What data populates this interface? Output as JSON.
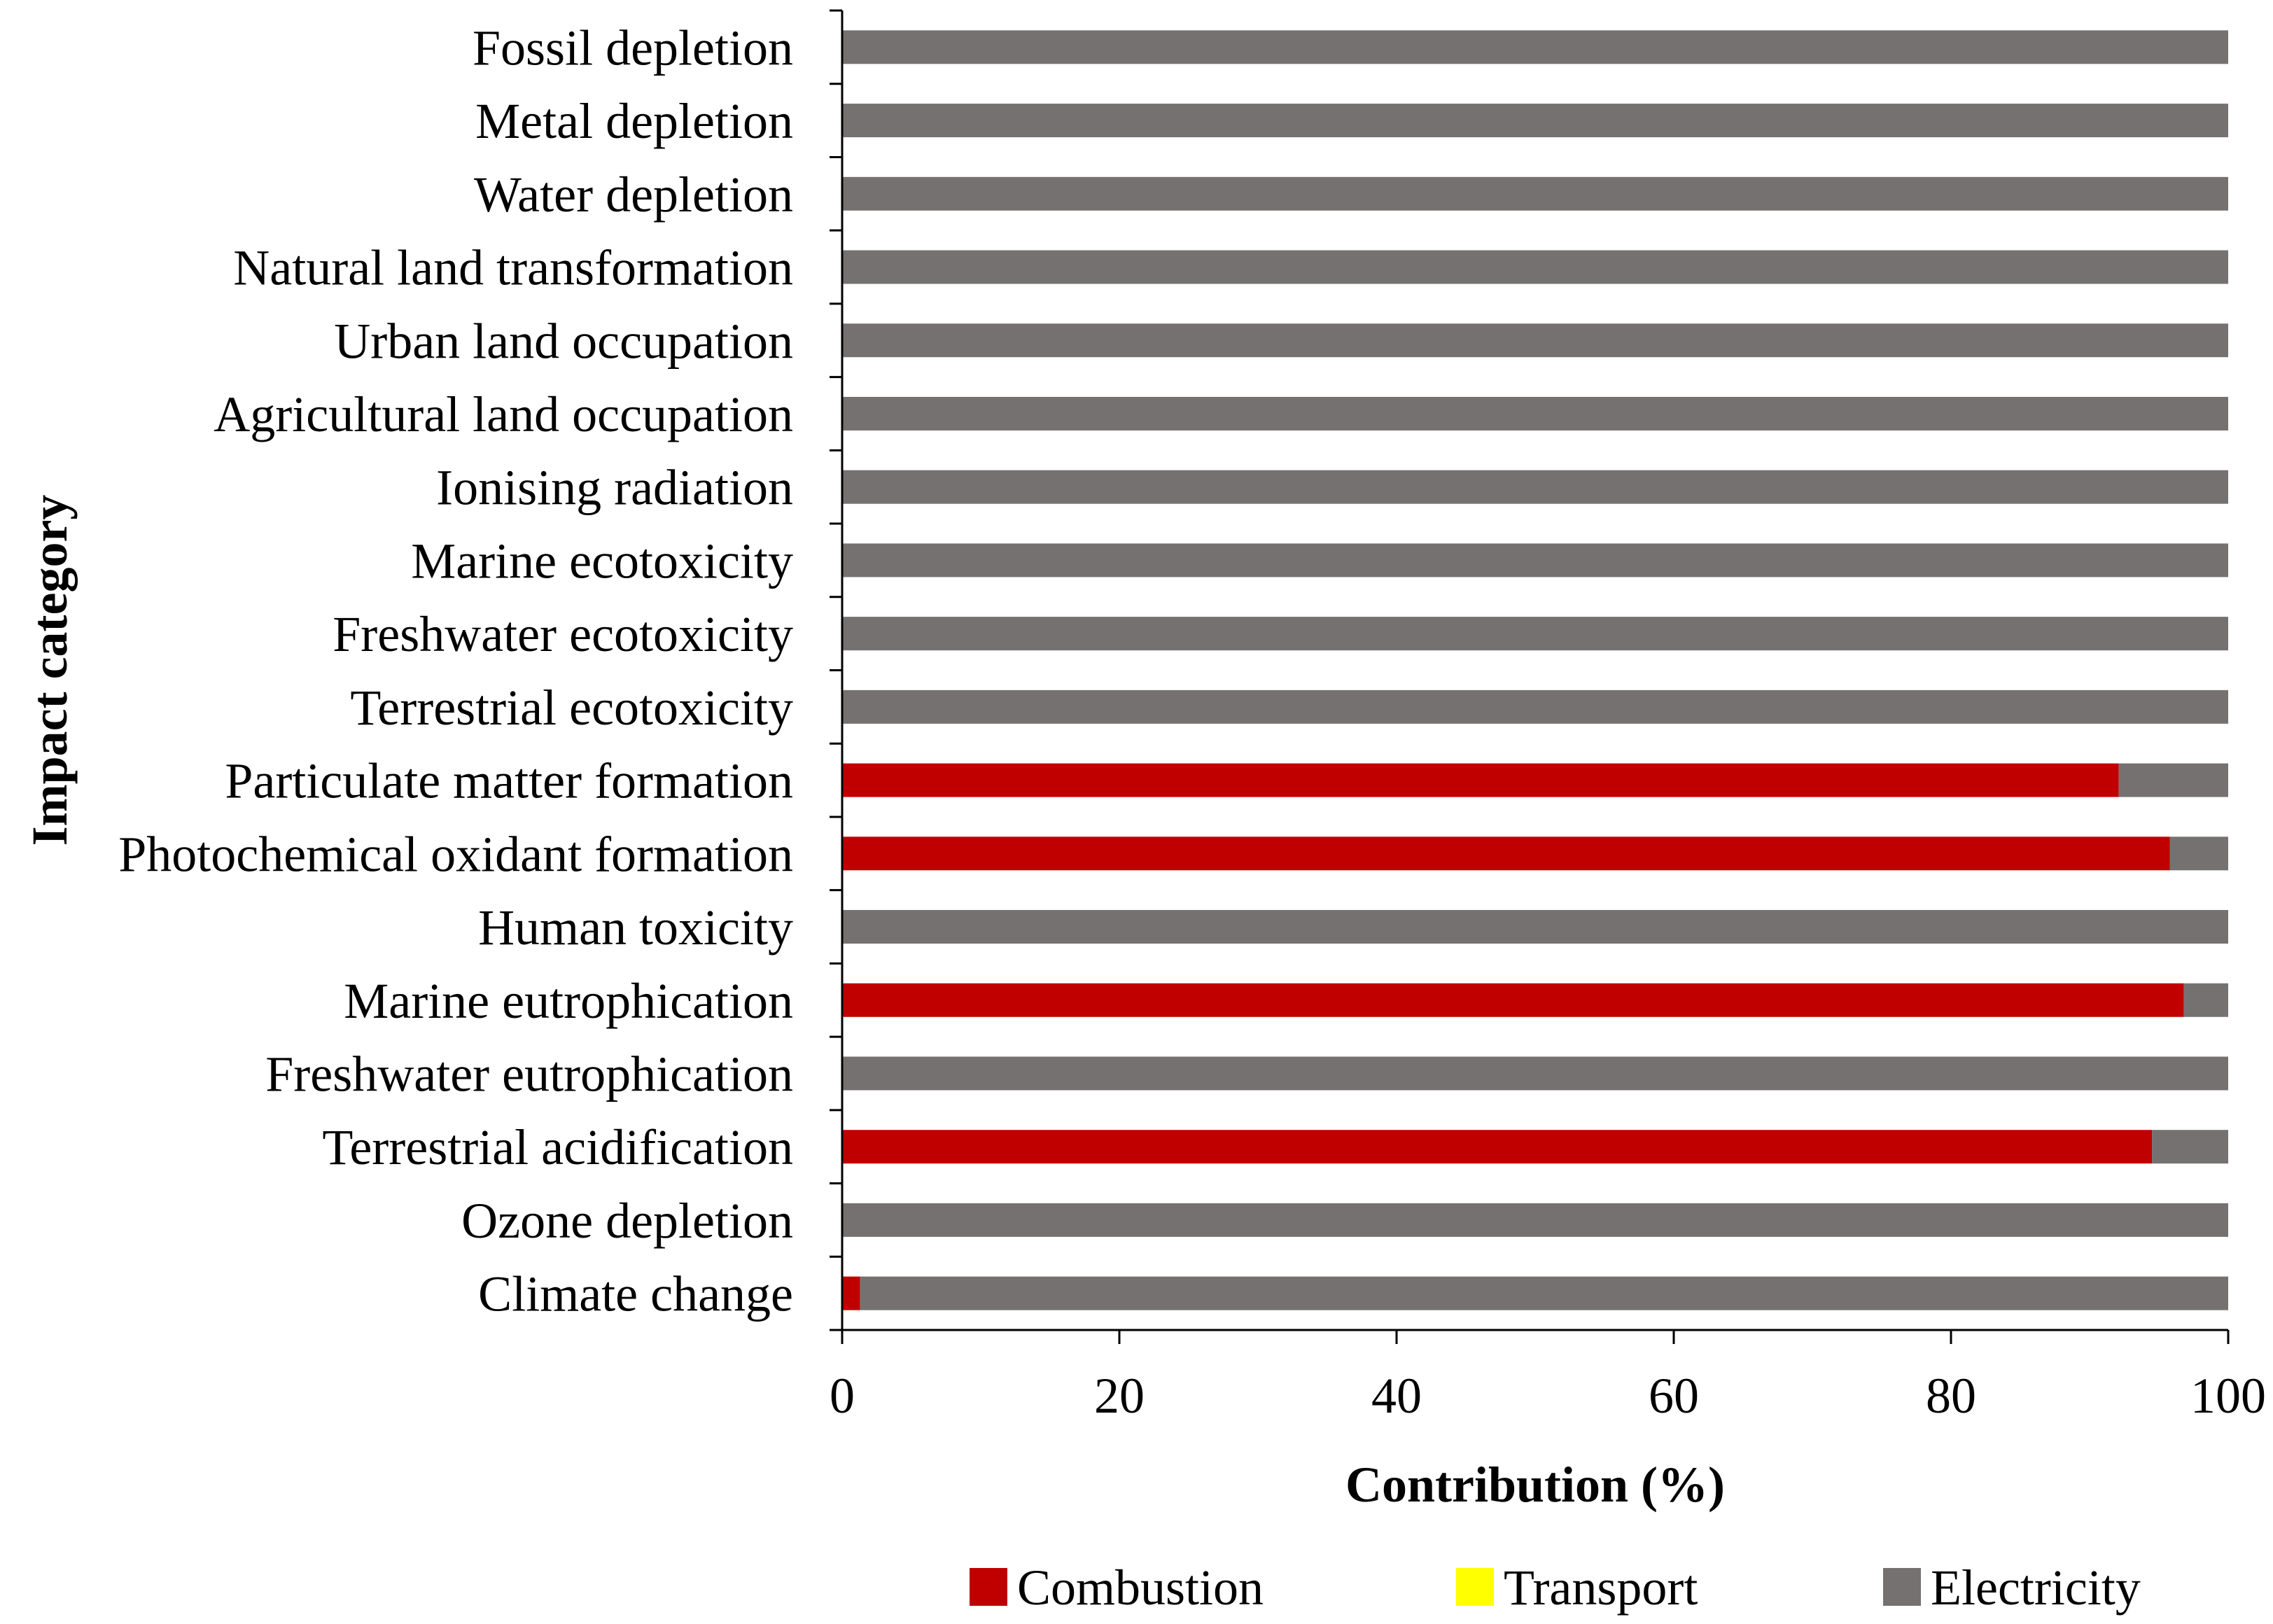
{
  "chart_data": {
    "type": "bar",
    "orientation": "horizontal",
    "stacked": true,
    "xlabel": "Contribution (%)",
    "ylabel": "Impact category",
    "xlim": [
      0,
      100
    ],
    "xticks": [
      "0",
      "20",
      "40",
      "60",
      "80",
      "100"
    ],
    "grid": false,
    "legend_position": "bottom",
    "categories": [
      "Fossil depletion",
      "Metal depletion",
      "Water depletion",
      "Natural land transformation",
      "Urban land occupation",
      "Agricultural land occupation",
      "Ionising radiation",
      "Marine ecotoxicity",
      "Freshwater ecotoxicity",
      "Terrestrial ecotoxicity",
      "Particulate matter formation",
      "Photochemical oxidant formation",
      "Human toxicity",
      "Marine eutrophication",
      "Freshwater eutrophication",
      "Terrestrial acidification",
      "Ozone depletion",
      "Climate change"
    ],
    "series": [
      {
        "name": "Combustion",
        "color": "#c00000",
        "values": [
          0,
          0,
          0,
          0,
          0,
          0,
          0,
          0,
          0,
          0,
          92.1,
          95.8,
          0,
          96.8,
          0,
          94.5,
          0,
          1.3
        ]
      },
      {
        "name": "Transport",
        "color": "#ffff00",
        "values": [
          0,
          0,
          0,
          0,
          0,
          0,
          0,
          0,
          0,
          0,
          0,
          0,
          0,
          0,
          0,
          0,
          0,
          0
        ]
      },
      {
        "name": "Electricity",
        "color": "#767171",
        "values": [
          100,
          100,
          100,
          100,
          100,
          100,
          100,
          100,
          100,
          100,
          7.9,
          4.2,
          100,
          3.2,
          100,
          5.5,
          100,
          98.7
        ]
      }
    ]
  }
}
